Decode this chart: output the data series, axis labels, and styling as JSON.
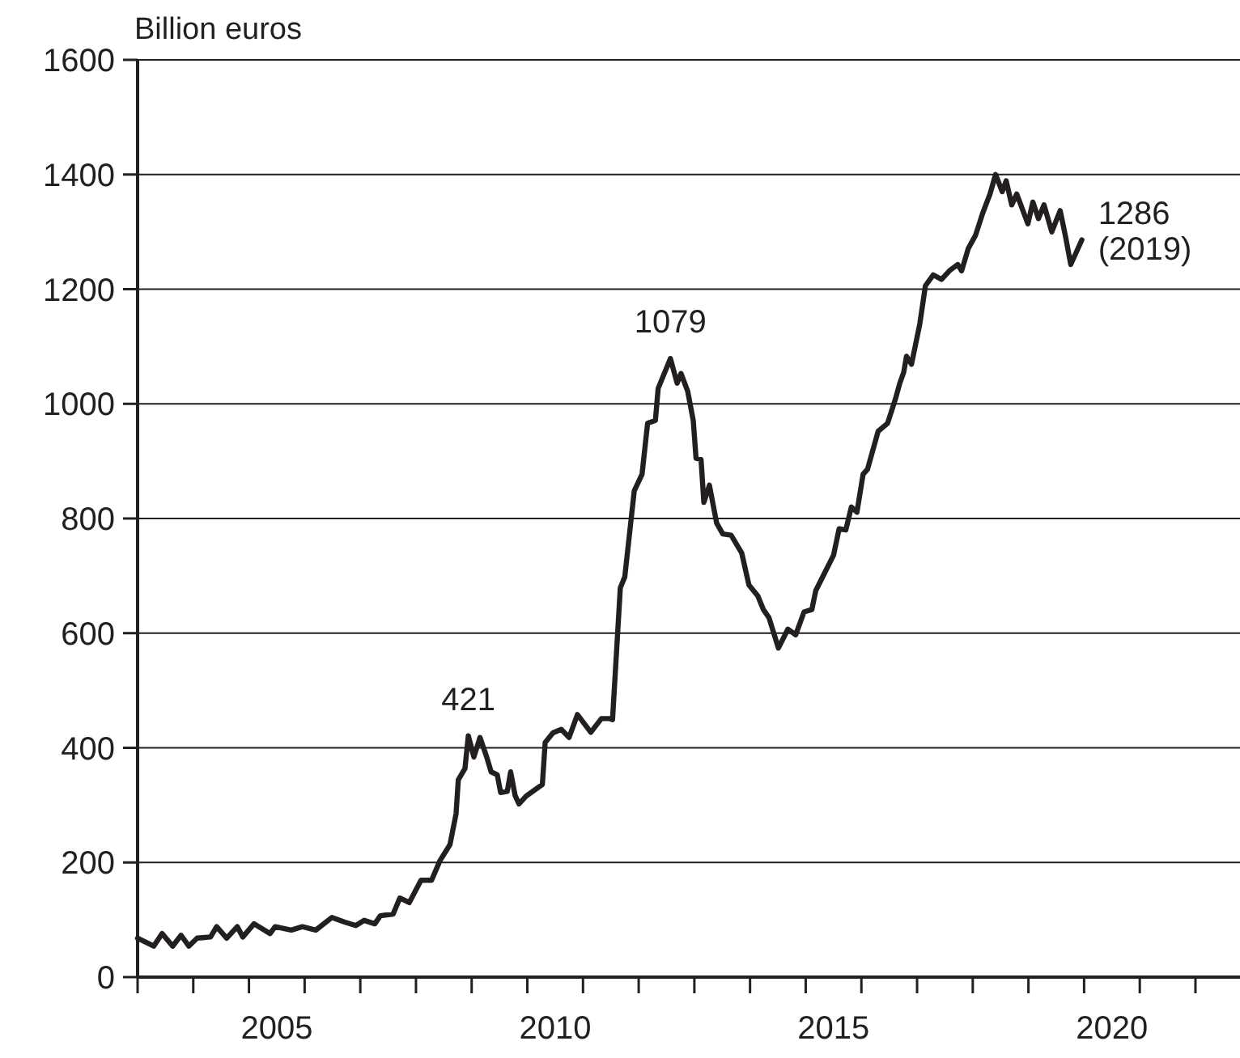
{
  "chart_data": {
    "type": "line",
    "ylabel": "Billion euros",
    "xlim": [
      2003,
      2022.8
    ],
    "xticks": [
      {
        "value": 2003,
        "label": null
      },
      {
        "value": 2004,
        "label": null
      },
      {
        "value": 2005,
        "label": null
      },
      {
        "value": 2006,
        "label": null
      },
      {
        "value": 2007,
        "label": null
      },
      {
        "value": 2008,
        "label": null
      },
      {
        "value": 2009,
        "label": null
      },
      {
        "value": 2010,
        "label": null
      },
      {
        "value": 2011,
        "label": null
      },
      {
        "value": 2012,
        "label": null
      },
      {
        "value": 2013,
        "label": null
      },
      {
        "value": 2014,
        "label": null
      },
      {
        "value": 2015,
        "label": null
      },
      {
        "value": 2016,
        "label": null
      },
      {
        "value": 2017,
        "label": null
      },
      {
        "value": 2018,
        "label": null
      },
      {
        "value": 2019,
        "label": null
      },
      {
        "value": 2020,
        "label": null
      },
      {
        "value": 2021,
        "label": null
      },
      {
        "value": 2022,
        "label": null
      },
      {
        "value": 2005.5,
        "label": "2005"
      },
      {
        "value": 2010.5,
        "label": "2010"
      },
      {
        "value": 2015.5,
        "label": "2015"
      },
      {
        "value": 2020.5,
        "label": "2020"
      }
    ],
    "ylim": [
      0,
      1600
    ],
    "yticks": [
      0,
      200,
      400,
      600,
      800,
      1000,
      1200,
      1400,
      1600
    ],
    "grid": "y",
    "marker": "none",
    "line_style": "solid",
    "series": [
      {
        "color": "#231f20",
        "x": [
          2003.0,
          2003.29,
          2003.44,
          2003.63,
          2003.78,
          2003.92,
          2004.07,
          2004.31,
          2004.42,
          2004.6,
          2004.79,
          2004.89,
          2005.09,
          2005.38,
          2005.47,
          2005.76,
          2005.96,
          2006.2,
          2006.49,
          2006.72,
          2006.92,
          2007.07,
          2007.26,
          2007.36,
          2007.59,
          2007.71,
          2007.88,
          2008.09,
          2008.28,
          2008.43,
          2008.61,
          2008.72,
          2008.76,
          2008.88,
          2008.94,
          2009.04,
          2009.15,
          2009.27,
          2009.35,
          2009.46,
          2009.52,
          2009.64,
          2009.7,
          2009.78,
          2009.85,
          2009.98,
          2010.27,
          2010.32,
          2010.46,
          2010.61,
          2010.75,
          2010.9,
          2011.14,
          2011.33,
          2011.48,
          2011.53,
          2011.67,
          2011.75,
          2011.92,
          2012.06,
          2012.16,
          2012.3,
          2012.35,
          2012.57,
          2012.69,
          2012.76,
          2012.88,
          2012.98,
          2013.03,
          2013.12,
          2013.17,
          2013.27,
          2013.4,
          2013.51,
          2013.66,
          2013.85,
          2013.98,
          2014.14,
          2014.24,
          2014.34,
          2014.51,
          2014.68,
          2014.82,
          2014.97,
          2015.11,
          2015.18,
          2015.5,
          2015.6,
          2015.72,
          2015.82,
          2015.92,
          2016.03,
          2016.11,
          2016.3,
          2016.47,
          2016.61,
          2016.69,
          2016.76,
          2016.81,
          2016.9,
          2017.05,
          2017.15,
          2017.29,
          2017.44,
          2017.58,
          2017.73,
          2017.8,
          2017.92,
          2018.05,
          2018.18,
          2018.31,
          2018.41,
          2018.53,
          2018.6,
          2018.7,
          2018.79,
          2018.99,
          2019.08,
          2019.18,
          2019.28,
          2019.42,
          2019.57,
          2019.67,
          2019.76,
          2019.96
        ],
        "values": [
          68,
          54,
          76,
          54,
          73,
          54,
          68,
          70,
          88,
          68,
          88,
          70,
          93,
          76,
          88,
          82,
          88,
          82,
          104,
          96,
          90,
          99,
          93,
          107,
          110,
          138,
          130,
          169,
          169,
          203,
          231,
          285,
          344,
          364,
          421,
          384,
          418,
          384,
          358,
          353,
          322,
          324,
          358,
          317,
          302,
          316,
          336,
          409,
          426,
          432,
          418,
          458,
          427,
          451,
          451,
          449,
          679,
          698,
          848,
          877,
          966,
          971,
          1027,
          1079,
          1036,
          1053,
          1022,
          971,
          905,
          903,
          828,
          858,
          792,
          773,
          771,
          740,
          684,
          665,
          641,
          627,
          574,
          607,
          597,
          637,
          641,
          674,
          736,
          782,
          780,
          820,
          811,
          877,
          886,
          952,
          966,
          1008,
          1036,
          1055,
          1083,
          1069,
          1140,
          1206,
          1225,
          1217,
          1232,
          1243,
          1232,
          1271,
          1294,
          1333,
          1366,
          1400,
          1370,
          1389,
          1347,
          1366,
          1314,
          1352,
          1323,
          1347,
          1300,
          1337,
          1290,
          1243,
          1286
        ]
      }
    ],
    "annotations": [
      {
        "text": "421",
        "x": 2008.94,
        "y": 421
      },
      {
        "text": "1079",
        "x": 2012.57,
        "y": 1079
      },
      {
        "text": "1286\n(2019)",
        "x": 2019.96,
        "y": 1286
      }
    ]
  }
}
